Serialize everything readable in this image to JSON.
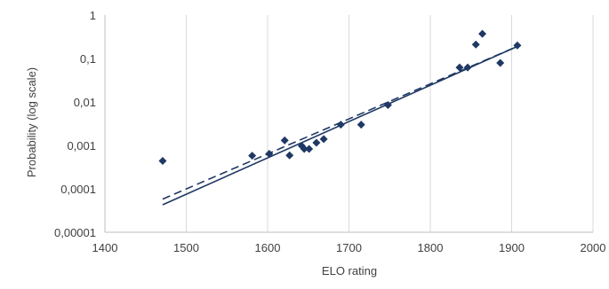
{
  "chart_data": {
    "type": "scatter",
    "xlabel": "ELO rating",
    "ylabel": "Probability (log scale)",
    "xlim": [
      1400,
      2000
    ],
    "ylim": [
      1e-05,
      1
    ],
    "y_scale": "log",
    "grid": "vertical",
    "x_ticks": [
      "1400",
      "1500",
      "1600",
      "1700",
      "1800",
      "1900",
      "2000"
    ],
    "y_ticks": [
      "1",
      "0,1",
      "0,01",
      "0,001",
      "0,0001",
      "0,00001"
    ],
    "marker_color": "#1f3864",
    "series": [
      {
        "marker": "diamond",
        "points": [
          {
            "x": 1471,
            "y": 0.00044
          },
          {
            "x": 1581,
            "y": 0.00058
          },
          {
            "x": 1602,
            "y": 0.00064
          },
          {
            "x": 1621,
            "y": 0.0013
          },
          {
            "x": 1627,
            "y": 0.00059
          },
          {
            "x": 1642,
            "y": 0.00097
          },
          {
            "x": 1645,
            "y": 0.00083
          },
          {
            "x": 1651,
            "y": 0.00083
          },
          {
            "x": 1660,
            "y": 0.00115
          },
          {
            "x": 1669,
            "y": 0.0014
          },
          {
            "x": 1690,
            "y": 0.003
          },
          {
            "x": 1715,
            "y": 0.003
          },
          {
            "x": 1748,
            "y": 0.0085
          },
          {
            "x": 1836,
            "y": 0.062
          },
          {
            "x": 1846,
            "y": 0.062
          },
          {
            "x": 1856,
            "y": 0.21
          },
          {
            "x": 1864,
            "y": 0.37
          },
          {
            "x": 1886,
            "y": 0.079
          },
          {
            "x": 1907,
            "y": 0.2
          }
        ]
      }
    ],
    "trendlines": [
      {
        "style": "solid",
        "x": [
          1471,
          1907
        ],
        "y": [
          4.3e-05,
          0.19
        ]
      },
      {
        "style": "dashed",
        "x": [
          1471,
          1907
        ],
        "y": [
          5.8e-05,
          0.19
        ]
      }
    ]
  }
}
